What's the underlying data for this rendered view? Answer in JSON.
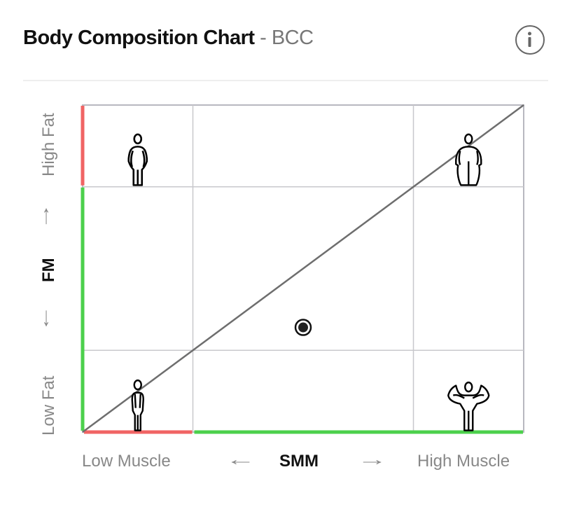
{
  "header": {
    "title": "Body Composition Chart",
    "separator": " - ",
    "subtitle": "BCC",
    "info_icon": "info-circle-icon"
  },
  "chart_data": {
    "type": "scatter",
    "xlabel": "SMM",
    "ylabel": "FM",
    "x_low_label": "Low Muscle",
    "x_high_label": "High Muscle",
    "y_low_label": "Low Fat",
    "y_high_label": "High Fat",
    "xlim": [
      0,
      100
    ],
    "ylim": [
      0,
      100
    ],
    "x_thresholds": [
      25,
      75
    ],
    "y_thresholds": [
      25,
      75
    ],
    "points": [
      {
        "x": 50,
        "y": 32
      }
    ],
    "reference_line": {
      "from": [
        0,
        0
      ],
      "to": [
        100,
        100
      ]
    },
    "x_axis_segments": [
      {
        "range": [
          0,
          25
        ],
        "color": "#f06464"
      },
      {
        "range": [
          25,
          100
        ],
        "color": "#4cd04c"
      }
    ],
    "y_axis_segments": [
      {
        "range": [
          0,
          75
        ],
        "color": "#4cd04c"
      },
      {
        "range": [
          75,
          100
        ],
        "color": "#f06464"
      }
    ],
    "quadrant_icons": [
      {
        "quadrant": "low-muscle-high-fat",
        "icon": "overweight-person-icon"
      },
      {
        "quadrant": "high-muscle-high-fat",
        "icon": "obese-person-icon"
      },
      {
        "quadrant": "low-muscle-low-fat",
        "icon": "slim-person-icon"
      },
      {
        "quadrant": "high-muscle-low-fat",
        "icon": "muscular-person-icon"
      }
    ],
    "grid": true
  },
  "arrows": {
    "left": "←",
    "right": "→",
    "up": "↑",
    "down": "↓"
  }
}
